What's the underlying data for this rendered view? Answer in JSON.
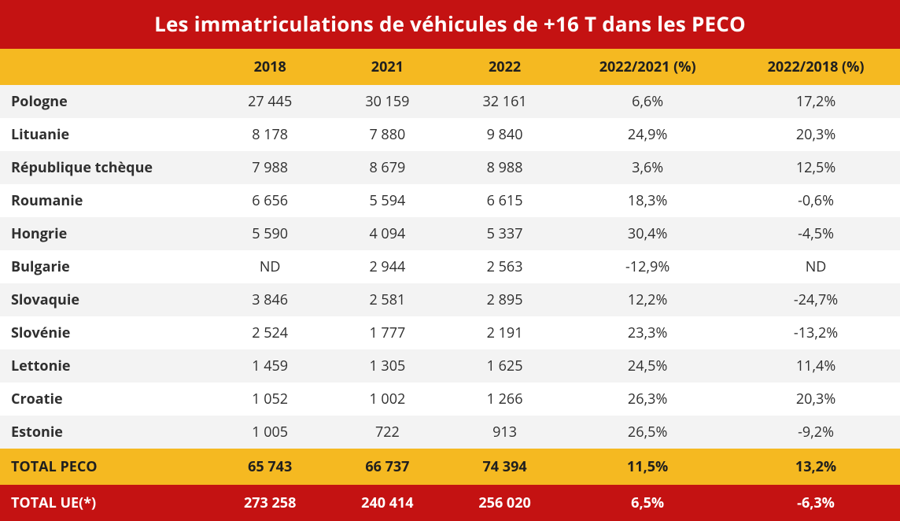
{
  "title": "Les immatriculations de véhicules de +16 T dans les PECO",
  "colors": {
    "primary_red": "#c41212",
    "gold": "#f5b921",
    "row_alt": "#f3f3f3",
    "row_base": "#ffffff",
    "text_dark": "#2f2f2f",
    "title_text": "#ffffff",
    "header_text": "#1f1f1f"
  },
  "typography": {
    "title_fontsize": 26,
    "header_fontsize": 18,
    "cell_fontsize": 18,
    "label_fontsize": 18
  },
  "columns": [
    {
      "key": "label",
      "label": ""
    },
    {
      "key": "y2018",
      "label": "2018"
    },
    {
      "key": "y2021",
      "label": "2021"
    },
    {
      "key": "y2022",
      "label": "2022"
    },
    {
      "key": "p22_21",
      "label": "2022/2021 (%)"
    },
    {
      "key": "p22_18",
      "label": "2022/2018 (%)"
    }
  ],
  "rows": [
    {
      "label": "Pologne",
      "y2018": "27 445",
      "y2021": "30 159",
      "y2022": "32 161",
      "p22_21": "6,6%",
      "p22_18": "17,2%"
    },
    {
      "label": "Lituanie",
      "y2018": "8 178",
      "y2021": "7 880",
      "y2022": "9 840",
      "p22_21": "24,9%",
      "p22_18": "20,3%"
    },
    {
      "label": "République tchèque",
      "y2018": "7 988",
      "y2021": "8 679",
      "y2022": "8 988",
      "p22_21": "3,6%",
      "p22_18": "12,5%"
    },
    {
      "label": "Roumanie",
      "y2018": "6 656",
      "y2021": "5 594",
      "y2022": "6 615",
      "p22_21": "18,3%",
      "p22_18": "-0,6%"
    },
    {
      "label": "Hongrie",
      "y2018": "5 590",
      "y2021": "4 094",
      "y2022": "5 337",
      "p22_21": "30,4%",
      "p22_18": "-4,5%"
    },
    {
      "label": "Bulgarie",
      "y2018": "ND",
      "y2021": "2 944",
      "y2022": "2 563",
      "p22_21": "-12,9%",
      "p22_18": "ND"
    },
    {
      "label": "Slovaquie",
      "y2018": "3 846",
      "y2021": "2 581",
      "y2022": "2 895",
      "p22_21": "12,2%",
      "p22_18": "-24,7%"
    },
    {
      "label": "Slovénie",
      "y2018": "2 524",
      "y2021": "1 777",
      "y2022": "2 191",
      "p22_21": "23,3%",
      "p22_18": "-13,2%"
    },
    {
      "label": "Lettonie",
      "y2018": "1 459",
      "y2021": "1 305",
      "y2022": "1 625",
      "p22_21": "24,5%",
      "p22_18": "11,4%"
    },
    {
      "label": "Croatie",
      "y2018": "1 052",
      "y2021": "1 002",
      "y2022": "1 266",
      "p22_21": "26,3%",
      "p22_18": "20,3%"
    },
    {
      "label": "Estonie",
      "y2018": "1 005",
      "y2021": "722",
      "y2022": "913",
      "p22_21": "26,5%",
      "p22_18": "-9,2%"
    }
  ],
  "totals": [
    {
      "label": "TOTAL PECO",
      "y2018": "65 743",
      "y2021": "66 737",
      "y2022": "74 394",
      "p22_21": "11,5%",
      "p22_18": "13,2%",
      "bg": "#f5b921",
      "fg": "#1f1f1f"
    },
    {
      "label": "TOTAL UE(*)",
      "y2018": "273 258",
      "y2021": "240 414",
      "y2022": "256 020",
      "p22_21": "6,5%",
      "p22_18": "-6,3%",
      "bg": "#c41212",
      "fg": "#ffffff"
    }
  ]
}
